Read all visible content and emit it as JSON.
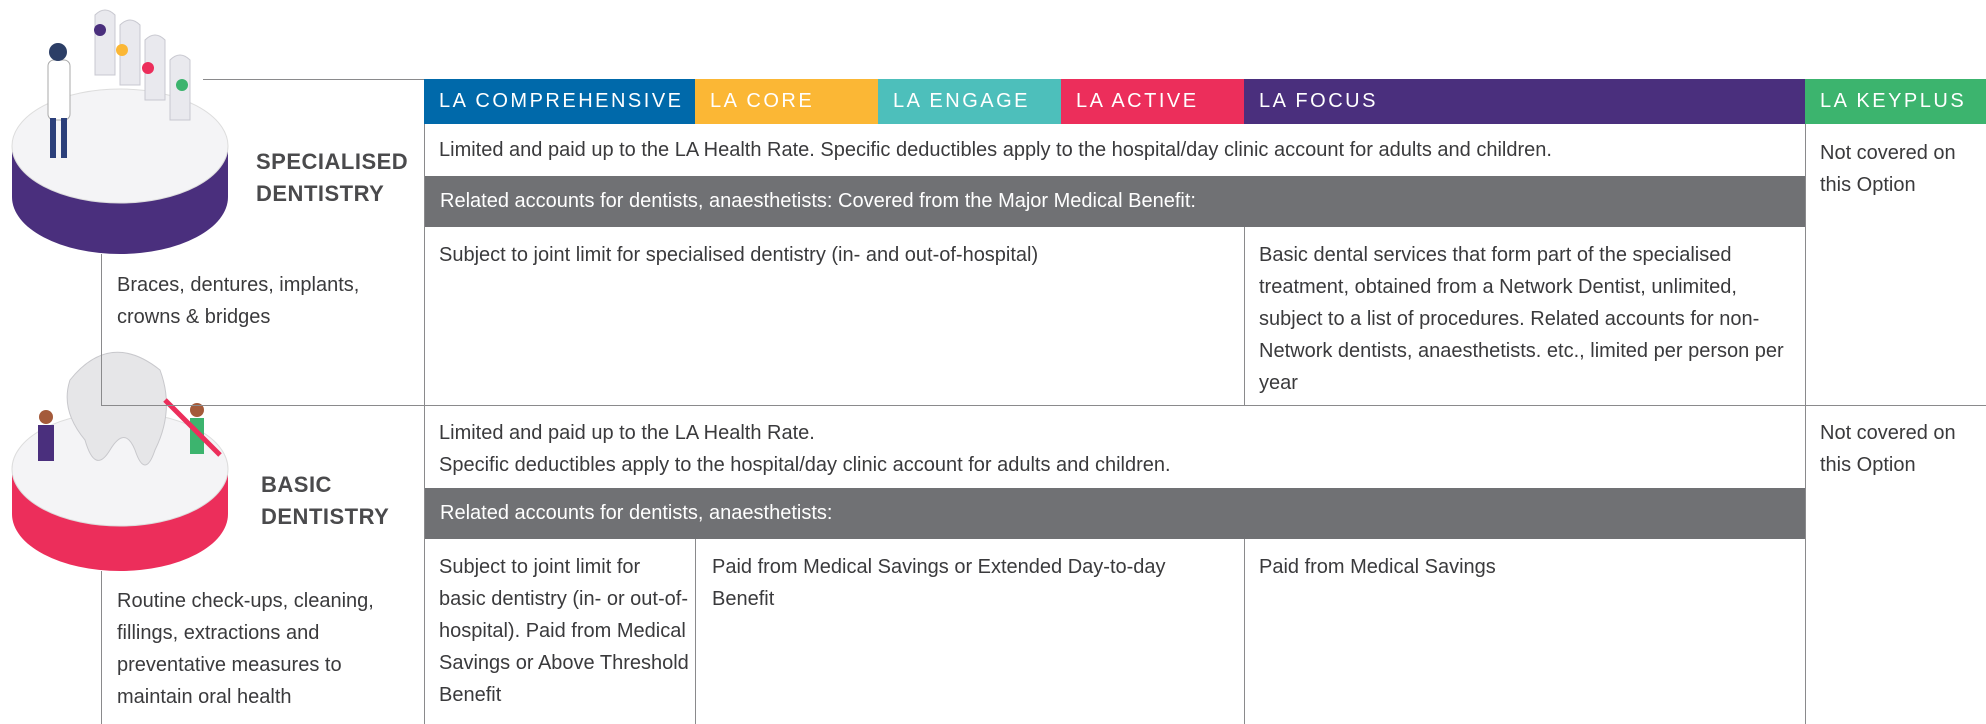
{
  "header": {
    "columns": [
      "LA COMPREHENSIVE",
      "LA CORE",
      "LA ENGAGE",
      "LA ACTIVE",
      "LA FOCUS",
      "LA KEYPLUS"
    ]
  },
  "sections": [
    {
      "title": "SPECIALISED DENTISTRY",
      "description": "Braces, dentures, implants, crowns & bridges",
      "rate": [
        "Limited and paid up to the LA Health Rate. Specific deductibles apply to the hospital/day clinic account for adults and children."
      ],
      "related": "Related accounts for dentists, anaesthetists:  Covered from the Major Medical Benefit:",
      "cells": [
        "Subject to joint limit for specialised dentistry (in- and out-of-hospital)",
        "Basic dental services that form part of the specialised treatment, obtained from a Network Dentist, unlimited, subject to a list of procedures. Related accounts for non-Network dentists, anaesthetists. etc., limited per person per year"
      ],
      "keyplus": "Not covered on this Option"
    },
    {
      "title": "BASIC DENTISTRY",
      "description": "Routine check-ups, cleaning, fillings, extractions and preventative measures to maintain oral health",
      "rate": [
        "Limited and paid up to the LA Health Rate.",
        "Specific deductibles apply to the hospital/day clinic account for adults and children."
      ],
      "related": "Related accounts for dentists, anaesthetists:",
      "cells": [
        "Subject to joint limit for basic dentistry (in- or out-of-hospital). Paid from Medical Savings or Above Threshold Benefit",
        "Paid from Medical Savings or Extended Day-to-day Benefit",
        "Paid from Medical Savings"
      ],
      "keyplus": "Not covered on this Option"
    }
  ]
}
